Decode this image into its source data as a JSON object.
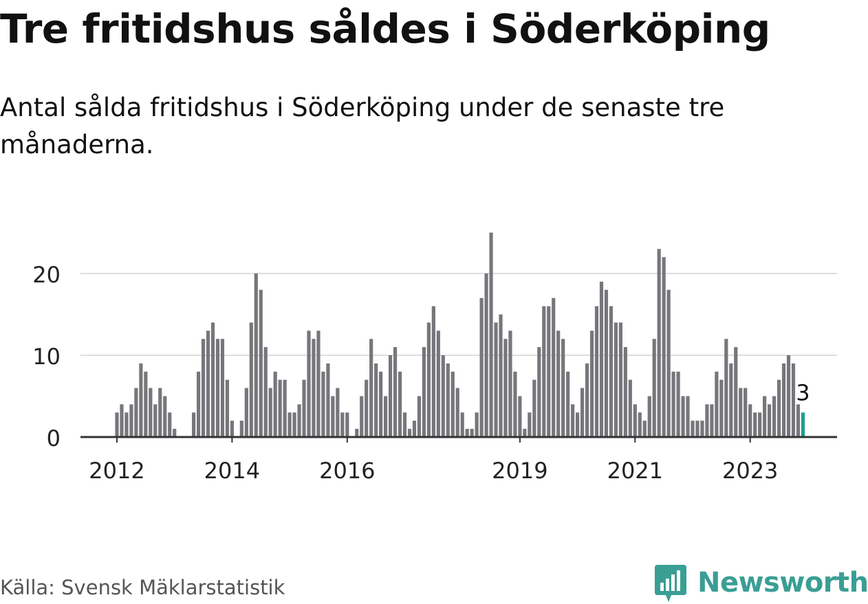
{
  "title": "Tre fritidshus såldes i Söderköping",
  "subtitle": "Antal sålda fritidshus i Söderköping under de senaste tre månaderna.",
  "source": "Källa: Svensk Mäklarstatistik",
  "brand": {
    "name": "Newsworthy",
    "icon": "newsworthy-logo-icon",
    "color": "#3a9e94"
  },
  "colors": {
    "bar": "#77767b",
    "highlight": "#1a9e93",
    "grid": "#dddddd",
    "axis": "#333333",
    "text": "#222222"
  },
  "chart_data": {
    "type": "bar",
    "start": "2012-01",
    "frequency": "monthly",
    "ylim": [
      0,
      26
    ],
    "yticks": [
      0,
      10,
      20
    ],
    "grid": true,
    "xtick_labels": [
      {
        "label": "2012",
        "month": "2012-01"
      },
      {
        "label": "2014",
        "month": "2014-01"
      },
      {
        "label": "2016",
        "month": "2016-01"
      },
      {
        "label": "2019",
        "month": "2019-01"
      },
      {
        "label": "2021",
        "month": "2021-01"
      },
      {
        "label": "2023",
        "month": "2023-01"
      }
    ],
    "values": [
      3,
      4,
      3,
      4,
      6,
      9,
      8,
      6,
      4,
      6,
      5,
      3,
      1,
      0,
      0,
      0,
      3,
      8,
      12,
      13,
      14,
      12,
      12,
      7,
      2,
      0,
      2,
      6,
      14,
      20,
      18,
      11,
      6,
      8,
      7,
      7,
      3,
      3,
      4,
      7,
      13,
      12,
      13,
      8,
      9,
      5,
      6,
      3,
      3,
      0,
      1,
      5,
      7,
      12,
      9,
      8,
      5,
      10,
      11,
      8,
      3,
      1,
      2,
      5,
      11,
      14,
      16,
      13,
      10,
      9,
      8,
      6,
      3,
      1,
      1,
      3,
      17,
      20,
      25,
      14,
      15,
      12,
      13,
      8,
      5,
      1,
      3,
      7,
      11,
      16,
      16,
      17,
      13,
      12,
      8,
      4,
      3,
      6,
      9,
      13,
      16,
      19,
      18,
      16,
      14,
      14,
      11,
      7,
      4,
      3,
      2,
      5,
      12,
      23,
      22,
      18,
      8,
      8,
      5,
      5,
      2,
      2,
      2,
      4,
      4,
      8,
      7,
      12,
      9,
      11,
      6,
      6,
      4,
      3,
      3,
      5,
      4,
      5,
      7,
      9,
      10,
      9,
      4,
      3
    ],
    "highlight_label": "3"
  }
}
